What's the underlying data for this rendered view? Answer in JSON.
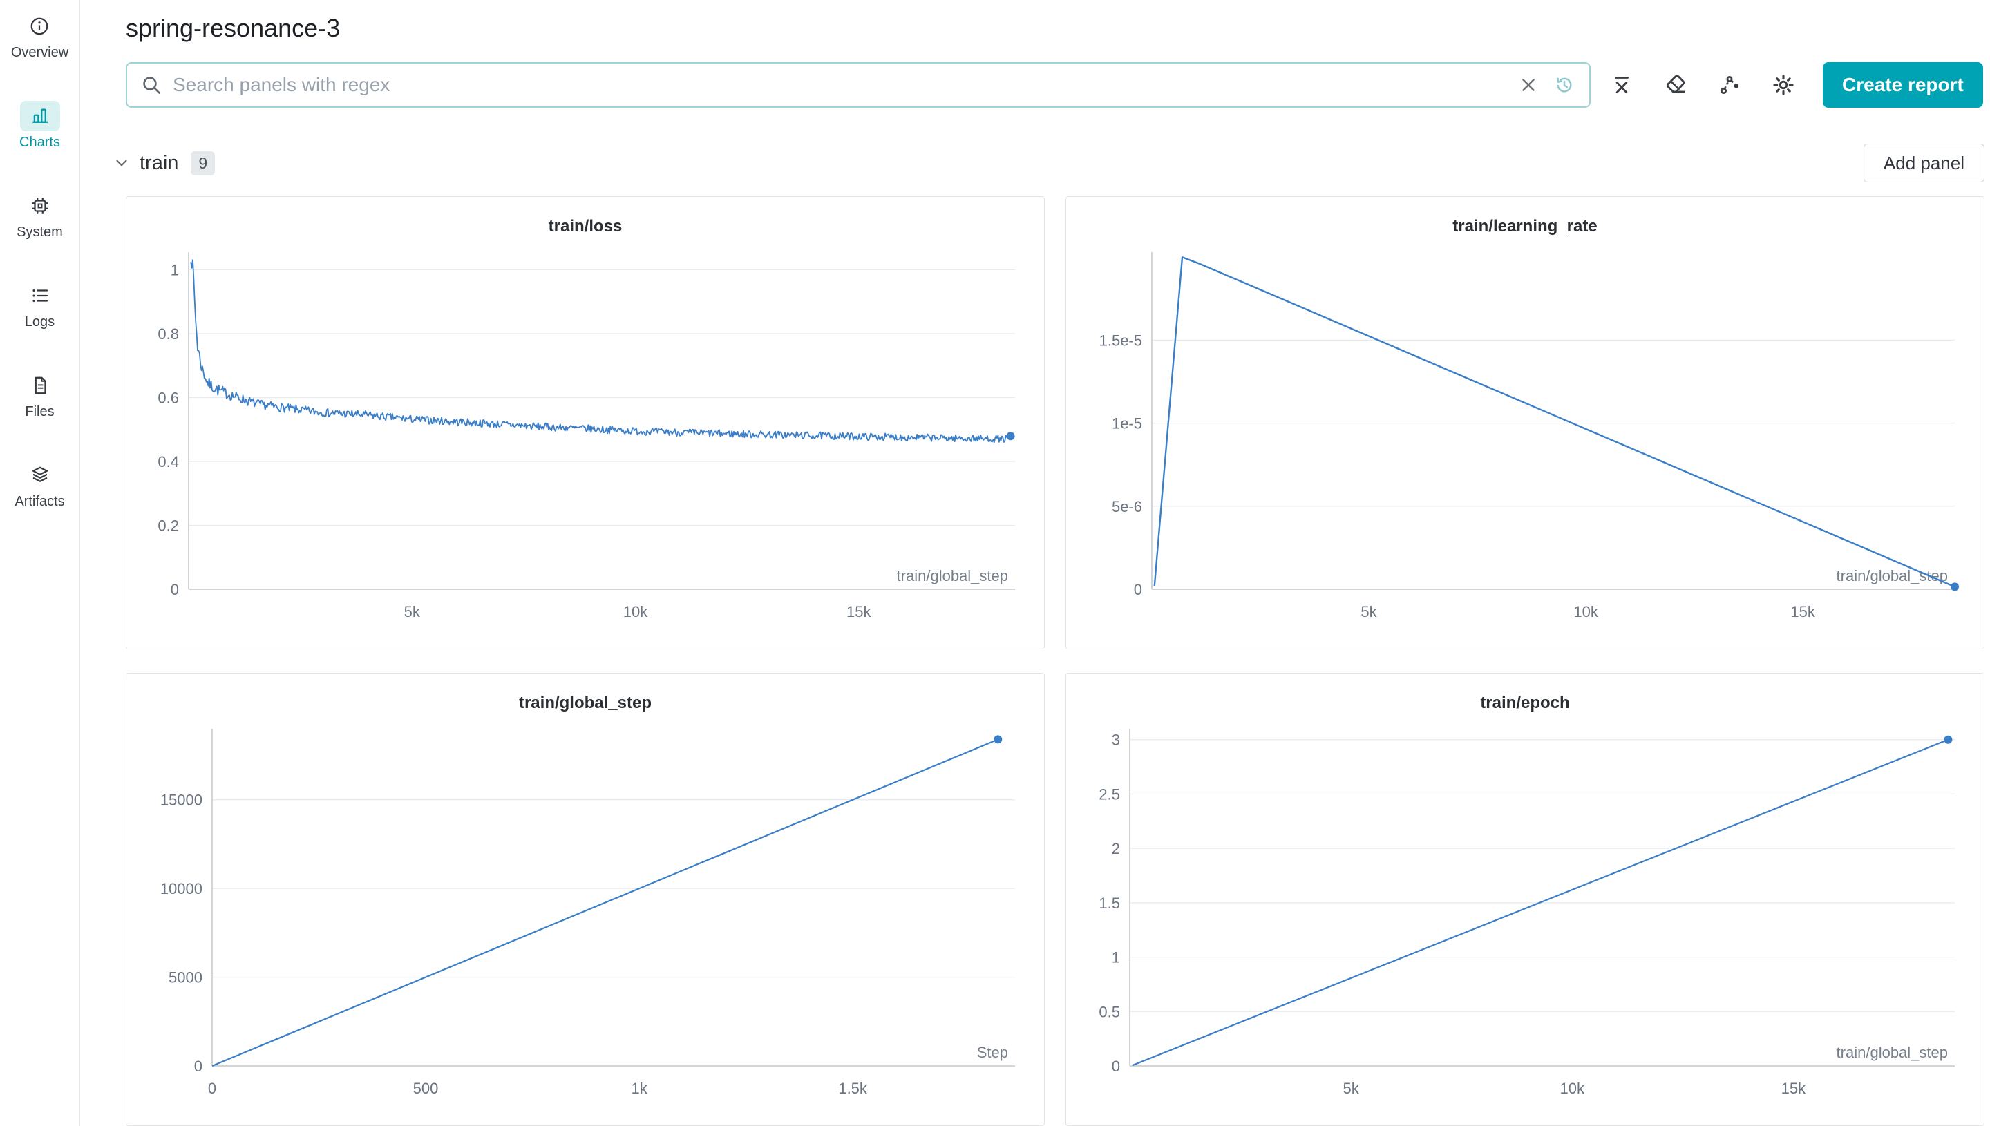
{
  "header": {
    "title": "spring-resonance-3"
  },
  "search": {
    "placeholder": "Search panels with regex"
  },
  "toolbar": {
    "create_report_label": "Create report",
    "icons": [
      "clear-icon",
      "history-icon",
      "x-axis-icon",
      "eraser-icon",
      "node-graph-icon",
      "settings-gear-icon"
    ]
  },
  "sidebar": {
    "items": [
      {
        "label": "Overview",
        "icon": "info-icon",
        "active": false
      },
      {
        "label": "Charts",
        "icon": "bar-chart-icon",
        "active": true
      },
      {
        "label": "System",
        "icon": "cpu-icon",
        "active": false
      },
      {
        "label": "Logs",
        "icon": "list-icon",
        "active": false
      },
      {
        "label": "Files",
        "icon": "document-icon",
        "active": false
      },
      {
        "label": "Artifacts",
        "icon": "layers-icon",
        "active": false
      }
    ]
  },
  "section": {
    "name": "train",
    "count": "9",
    "add_panel_label": "Add panel"
  },
  "colors": {
    "accent": "#00a3b3",
    "accent_dark": "#0097a3",
    "line": "#3a7ec8"
  },
  "chart_data": [
    {
      "type": "line",
      "title": "train/loss",
      "xlabel": "train/global_step",
      "ylabel": "",
      "xlim": [
        0,
        18500
      ],
      "ylim": [
        0,
        1.055
      ],
      "grid": true,
      "x_ticks": [
        {
          "v": 5000,
          "label": "5k"
        },
        {
          "v": 10000,
          "label": "10k"
        },
        {
          "v": 15000,
          "label": "15k"
        }
      ],
      "y_ticks": [
        {
          "v": 0,
          "label": "0"
        },
        {
          "v": 0.2,
          "label": "0.2"
        },
        {
          "v": 0.4,
          "label": "0.4"
        },
        {
          "v": 0.6,
          "label": "0.6"
        },
        {
          "v": 0.8,
          "label": "0.8"
        },
        {
          "v": 1,
          "label": "1"
        }
      ],
      "margin_left": 90,
      "series": [
        {
          "name": "train/loss",
          "width": 1.8,
          "points": [
            [
              50,
              1.05
            ],
            [
              100,
              1.0
            ],
            [
              150,
              0.86
            ],
            [
              200,
              0.76
            ],
            [
              300,
              0.69
            ],
            [
              430,
              0.645
            ],
            [
              600,
              0.627
            ],
            [
              900,
              0.61
            ],
            [
              1300,
              0.59
            ],
            [
              1600,
              0.578
            ],
            [
              2000,
              0.57
            ],
            [
              2500,
              0.561
            ],
            [
              3000,
              0.553
            ],
            [
              4000,
              0.545
            ],
            [
              5000,
              0.532
            ],
            [
              6000,
              0.524
            ],
            [
              7000,
              0.516
            ],
            [
              8000,
              0.508
            ],
            [
              9000,
              0.502
            ],
            [
              10000,
              0.495
            ],
            [
              11000,
              0.491
            ],
            [
              12000,
              0.487
            ],
            [
              13000,
              0.484
            ],
            [
              14000,
              0.481
            ],
            [
              15000,
              0.478
            ],
            [
              16000,
              0.476
            ],
            [
              17000,
              0.473
            ],
            [
              18400,
              0.47
            ]
          ],
          "noise_amplitude_points": [
            [
              0,
              0.028
            ],
            [
              300,
              0.02
            ],
            [
              1500,
              0.014
            ],
            [
              5000,
              0.012
            ],
            [
              18400,
              0.011
            ]
          ],
          "samples": 850,
          "end_marker": true
        }
      ]
    },
    {
      "type": "line",
      "title": "train/learning_rate",
      "xlabel": "train/global_step",
      "ylabel": "",
      "xlim": [
        0,
        18500
      ],
      "ylim": [
        0,
        2.03e-05
      ],
      "grid": true,
      "x_ticks": [
        {
          "v": 5000,
          "label": "5k"
        },
        {
          "v": 10000,
          "label": "10k"
        },
        {
          "v": 15000,
          "label": "15k"
        }
      ],
      "y_ticks": [
        {
          "v": 0,
          "label": "0"
        },
        {
          "v": 5e-06,
          "label": "5e-6"
        },
        {
          "v": 1e-05,
          "label": "1e-5"
        },
        {
          "v": 1.5e-05,
          "label": "1.5e-5"
        }
      ],
      "margin_left": 124,
      "series": [
        {
          "name": "train/learning_rate",
          "width": 2.4,
          "points": [
            [
              60,
              2e-07
            ],
            [
              700,
              2e-05
            ],
            [
              1100,
              1.96e-05
            ],
            [
              18500,
              1.5e-07
            ]
          ],
          "end_marker": true
        }
      ]
    },
    {
      "type": "line",
      "title": "train/global_step",
      "xlabel": "Step",
      "ylabel": "",
      "xlim": [
        0,
        1880
      ],
      "ylim": [
        0,
        19000
      ],
      "grid": true,
      "x_ticks": [
        {
          "v": 0,
          "label": "0"
        },
        {
          "v": 500,
          "label": "500"
        },
        {
          "v": 1000,
          "label": "1k"
        },
        {
          "v": 1500,
          "label": "1.5k"
        }
      ],
      "y_ticks": [
        {
          "v": 0,
          "label": "0"
        },
        {
          "v": 5000,
          "label": "5000"
        },
        {
          "v": 10000,
          "label": "10000"
        },
        {
          "v": 15000,
          "label": "15000"
        }
      ],
      "margin_left": 124,
      "series": [
        {
          "name": "train/global_step",
          "width": 2.2,
          "points": [
            [
              0,
              0
            ],
            [
              1840,
              18400
            ]
          ],
          "end_marker": true
        }
      ]
    },
    {
      "type": "line",
      "title": "train/epoch",
      "xlabel": "train/global_step",
      "ylabel": "",
      "xlim": [
        0,
        18650
      ],
      "ylim": [
        0,
        3.1
      ],
      "grid": true,
      "x_ticks": [
        {
          "v": 5000,
          "label": "5k"
        },
        {
          "v": 10000,
          "label": "10k"
        },
        {
          "v": 15000,
          "label": "15k"
        }
      ],
      "y_ticks": [
        {
          "v": 0,
          "label": "0"
        },
        {
          "v": 0.5,
          "label": "0.5"
        },
        {
          "v": 1,
          "label": "1"
        },
        {
          "v": 1.5,
          "label": "1.5"
        },
        {
          "v": 2,
          "label": "2"
        },
        {
          "v": 2.5,
          "label": "2.5"
        },
        {
          "v": 3,
          "label": "3"
        }
      ],
      "margin_left": 92,
      "series": [
        {
          "name": "train/epoch",
          "width": 2.2,
          "points": [
            [
              60,
              0.005
            ],
            [
              18500,
              3
            ]
          ],
          "end_marker": true
        }
      ]
    }
  ]
}
